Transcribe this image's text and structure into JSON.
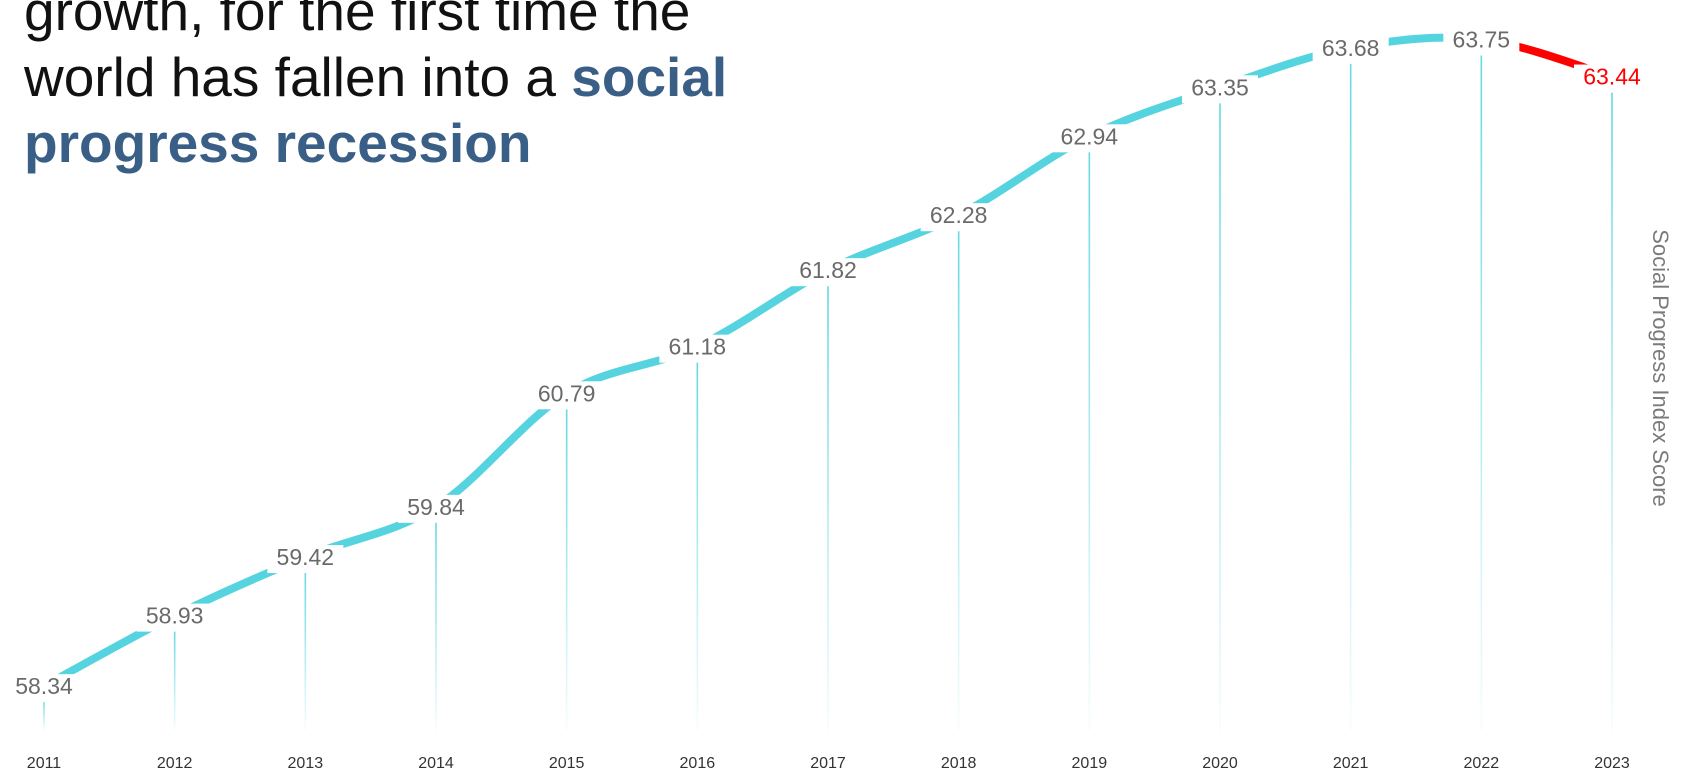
{
  "headline": {
    "line1": "growth, for the first time the",
    "line2_prefix": "world has fallen into a ",
    "line2_highlight": "social",
    "line3_highlight": "progress recession"
  },
  "colors": {
    "line": "#55d4e0",
    "decline": "#ff0000",
    "highlight": "#3a5f87",
    "label": "#6a6a6a",
    "decline_label": "#ff0000",
    "drop_line": "#55d4e0"
  },
  "chart_data": {
    "type": "line",
    "title": "",
    "xlabel": "",
    "ylabel": "Social Progress Index Score",
    "categories": [
      "2011",
      "2012",
      "2013",
      "2014",
      "2015",
      "2016",
      "2017",
      "2018",
      "2019",
      "2020",
      "2021",
      "2022",
      "2023"
    ],
    "value_labels": [
      "58.34",
      "58.93",
      "59.42",
      "59.84",
      "60.79",
      "61.18",
      "61.82",
      "62.28",
      "62.94",
      "63.35",
      "63.68",
      "63.75",
      "63.44"
    ],
    "series": [
      {
        "values": [
          58.34,
          58.93,
          59.42,
          59.84,
          60.79,
          61.18,
          61.82,
          62.28,
          62.94,
          63.35,
          63.68,
          63.75,
          63.44
        ]
      }
    ],
    "highlight_segment": {
      "from": "2022",
      "to": "2023",
      "color": "#ff0000"
    },
    "ylim": [
      58.04,
      63.98
    ],
    "grid": false,
    "legend": "none"
  }
}
